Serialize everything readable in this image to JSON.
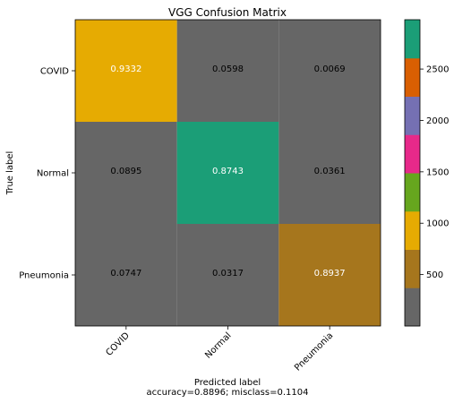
{
  "chart_data": {
    "type": "heatmap",
    "title": "VGG Confusion Matrix",
    "row_labels": [
      "COVID",
      "Normal",
      "Pneumonia"
    ],
    "col_labels": [
      "COVID",
      "Normal",
      "Pneumonia"
    ],
    "values": [
      [
        0.9332,
        0.0598,
        0.0069
      ],
      [
        0.0895,
        0.8743,
        0.0361
      ],
      [
        0.0747,
        0.0317,
        0.8937
      ]
    ],
    "value_labels": [
      [
        "0.9332",
        "0.0598",
        "0.0069"
      ],
      [
        "0.0895",
        "0.8743",
        "0.0361"
      ],
      [
        "0.0747",
        "0.0317",
        "0.8937"
      ]
    ],
    "cell_colors": [
      [
        "#e6ab02",
        "#666666",
        "#666666"
      ],
      [
        "#666666",
        "#1b9e77",
        "#666666"
      ],
      [
        "#666666",
        "#666666",
        "#a6761d"
      ]
    ],
    "text_colors": [
      [
        "#ffffff",
        "#000000",
        "#000000"
      ],
      [
        "#000000",
        "#ffffff",
        "#000000"
      ],
      [
        "#000000",
        "#000000",
        "#ffffff"
      ]
    ],
    "ylabel": "True label",
    "xlabel": "Predicted label",
    "xlabel_line2": "accuracy=0.8896; misclass=0.1104",
    "colorbar": {
      "colormap": "Dark2",
      "colors": [
        "#666666",
        "#a6761d",
        "#e6ab02",
        "#66a61e",
        "#e7298a",
        "#7570b3",
        "#d95f02",
        "#1b9e77"
      ],
      "range": [
        0,
        2980
      ],
      "ticks": [
        500,
        1000,
        1500,
        2000,
        2500
      ],
      "tick_labels": [
        "500",
        "1000",
        "1500",
        "2000",
        "2500"
      ]
    }
  }
}
